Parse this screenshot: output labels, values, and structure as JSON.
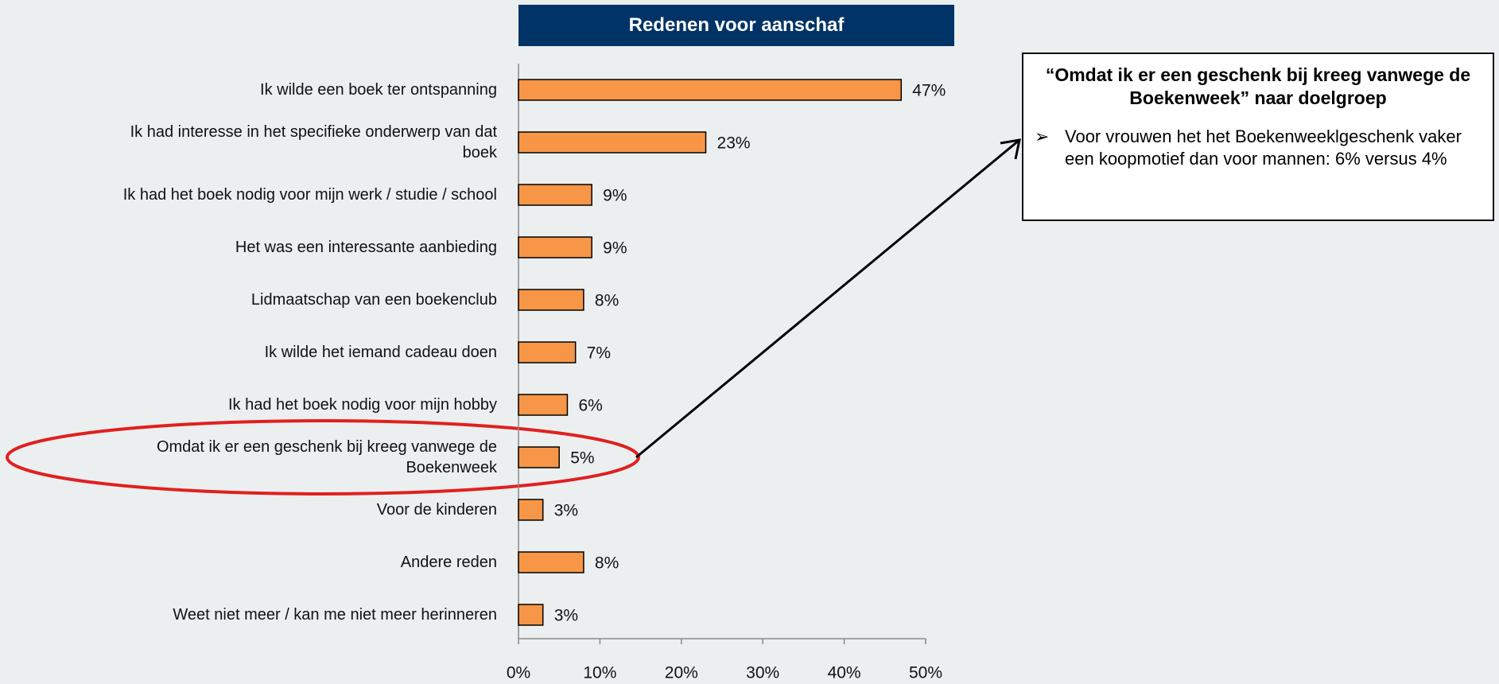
{
  "chart_data": {
    "type": "barh",
    "title": "Redenen voor aanschaf",
    "categories": [
      "Ik wilde een boek ter ontspanning",
      "Ik had interesse in het specifieke onderwerp van dat boek",
      "Ik had het boek nodig voor mijn werk / studie / school",
      "Het was een interessante aanbieding",
      "Lidmaatschap van een boekenclub",
      "Ik wilde het iemand cadeau doen",
      "Ik had het boek nodig voor mijn hobby",
      "Omdat ik er een geschenk bij kreeg vanwege de Boekenweek",
      "Voor de kinderen",
      "Andere reden",
      "Weet niet meer / kan me niet meer herinneren"
    ],
    "values": [
      47,
      23,
      9,
      9,
      8,
      7,
      6,
      5,
      3,
      8,
      3
    ],
    "value_labels": [
      "47%",
      "23%",
      "9%",
      "9%",
      "8%",
      "7%",
      "6%",
      "5%",
      "3%",
      "8%",
      "3%"
    ],
    "color": "#f79646",
    "xlim": [
      0,
      50
    ],
    "xticks": [
      {
        "value": 0,
        "label": "0%"
      },
      {
        "value": 10,
        "label": "10%"
      },
      {
        "value": 20,
        "label": "20%"
      },
      {
        "value": 30,
        "label": "30%"
      },
      {
        "value": 40,
        "label": "40%"
      },
      {
        "value": 50,
        "label": "50%"
      }
    ]
  },
  "annotation": {
    "title": "“Omdat ik er een geschenk bij kreeg vanwege de Boekenweek” naar doelgroep",
    "bullet": "Voor vrouwen het het Boekenweeklgeschenk vaker een koopmotief dan voor mannen: 6% versus 4%"
  }
}
